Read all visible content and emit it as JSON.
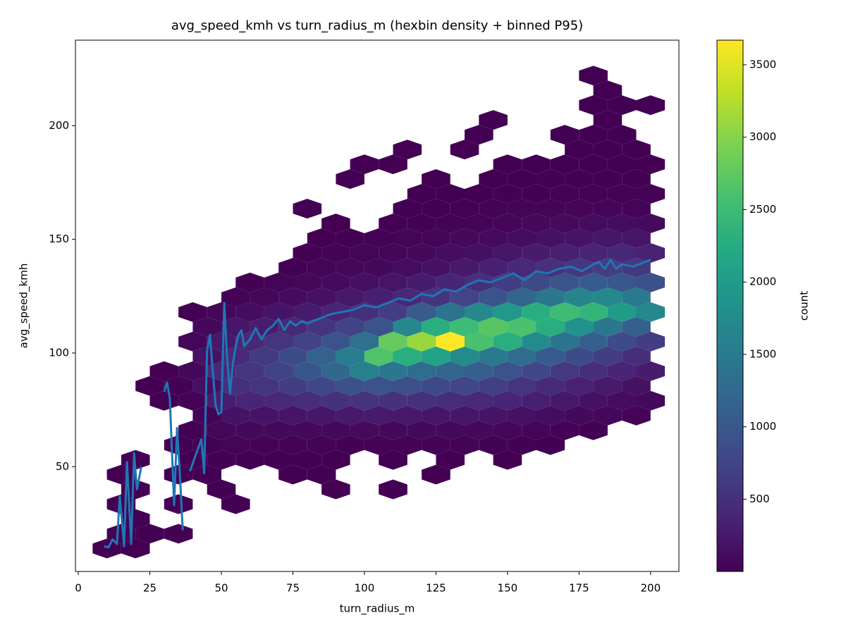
{
  "chart_data": {
    "type": "hexbin",
    "title": "avg_speed_kmh vs turn_radius_m (hexbin density + binned P95)",
    "x_label": "turn_radius_m",
    "y_label": "avg_speed_kmh",
    "xlim": [
      -1,
      209.9
    ],
    "ylim": [
      3.9,
      237.6
    ],
    "xticks": [
      0,
      25,
      50,
      75,
      100,
      125,
      150,
      175,
      200
    ],
    "yticks": [
      50,
      100,
      150,
      200
    ],
    "colormap": "viridis",
    "colorbar": {
      "label": "count",
      "lim": [
        1,
        3670
      ],
      "ticks": [
        500,
        1000,
        1500,
        2000,
        2500,
        3000,
        3500
      ]
    },
    "rows": [
      {
        "y": 14,
        "x": [
          10,
          20
        ],
        "counts": [
          3,
          2
        ]
      },
      {
        "y": 20.5,
        "x": [
          15,
          25,
          35
        ],
        "counts": [
          4,
          1,
          2
        ]
      },
      {
        "y": 27,
        "x": [
          20
        ],
        "counts": [
          2
        ]
      },
      {
        "y": 33.5,
        "x": [
          15,
          35,
          55
        ],
        "counts": [
          2,
          3,
          1
        ]
      },
      {
        "y": 40,
        "x": [
          20,
          50,
          90,
          110
        ],
        "counts": [
          2,
          3,
          1,
          1
        ]
      },
      {
        "y": 46.5,
        "x": [
          15,
          35,
          45,
          75,
          85,
          125
        ],
        "counts": [
          3,
          2,
          4,
          2,
          3,
          1
        ]
      },
      {
        "y": 53,
        "x": [
          20,
          40,
          50,
          60,
          70,
          80,
          90,
          110,
          130,
          150
        ],
        "counts": [
          3,
          5,
          8,
          6,
          4,
          2,
          6,
          4,
          3,
          2
        ]
      },
      {
        "y": 59.5,
        "x": [
          35,
          45,
          55,
          65,
          75,
          85,
          95,
          105,
          115,
          125,
          135,
          145,
          155,
          165
        ],
        "counts": [
          4,
          12,
          30,
          25,
          18,
          20,
          15,
          22,
          18,
          25,
          20,
          15,
          10,
          4
        ]
      },
      {
        "y": 66,
        "x": [
          40,
          50,
          60,
          70,
          80,
          90,
          100,
          110,
          120,
          130,
          140,
          150,
          160,
          170,
          180
        ],
        "counts": [
          8,
          60,
          90,
          80,
          75,
          85,
          95,
          90,
          85,
          80,
          70,
          60,
          40,
          20,
          10
        ]
      },
      {
        "y": 72.5,
        "x": [
          45,
          55,
          65,
          75,
          85,
          95,
          105,
          115,
          125,
          135,
          145,
          155,
          165,
          175,
          185,
          195
        ],
        "counts": [
          40,
          180,
          200,
          210,
          230,
          250,
          260,
          240,
          230,
          220,
          200,
          170,
          130,
          90,
          60,
          30
        ]
      },
      {
        "y": 79,
        "x": [
          30,
          40,
          50,
          60,
          70,
          80,
          90,
          100,
          110,
          120,
          130,
          140,
          150,
          160,
          170,
          180,
          190,
          200
        ],
        "counts": [
          3,
          20,
          300,
          380,
          420,
          480,
          520,
          540,
          520,
          500,
          470,
          430,
          380,
          320,
          240,
          170,
          120,
          80
        ]
      },
      {
        "y": 85.5,
        "x": [
          25,
          35,
          45,
          55,
          65,
          75,
          85,
          95,
          105,
          115,
          125,
          135,
          145,
          155,
          165,
          175,
          185,
          195
        ],
        "counts": [
          1,
          10,
          150,
          500,
          560,
          650,
          780,
          900,
          920,
          880,
          820,
          760,
          680,
          560,
          440,
          340,
          260,
          180
        ]
      },
      {
        "y": 92,
        "x": [
          30,
          40,
          50,
          60,
          70,
          80,
          90,
          100,
          110,
          120,
          130,
          140,
          150,
          160,
          170,
          180,
          190,
          200
        ],
        "counts": [
          6,
          90,
          420,
          560,
          720,
          980,
          1250,
          1600,
          1450,
          1300,
          1200,
          1100,
          950,
          780,
          600,
          480,
          380,
          280
        ]
      },
      {
        "y": 98.5,
        "x": [
          45,
          55,
          65,
          75,
          85,
          95,
          105,
          115,
          125,
          135,
          145,
          155,
          165,
          175,
          185,
          195
        ],
        "counts": [
          180,
          420,
          620,
          850,
          1150,
          1550,
          2650,
          2300,
          2100,
          1750,
          1500,
          1300,
          1050,
          850,
          650,
          480
        ]
      },
      {
        "y": 105,
        "x": [
          40,
          50,
          60,
          70,
          80,
          90,
          100,
          110,
          120,
          130,
          140,
          150,
          160,
          170,
          180,
          190,
          200
        ],
        "counts": [
          60,
          250,
          430,
          560,
          720,
          950,
          1350,
          2800,
          3100,
          3670,
          2600,
          2300,
          1750,
          1400,
          1100,
          850,
          650
        ]
      },
      {
        "y": 111.5,
        "x": [
          45,
          55,
          65,
          75,
          85,
          95,
          105,
          115,
          125,
          135,
          145,
          155,
          165,
          175,
          185,
          195
        ],
        "counts": [
          90,
          220,
          300,
          420,
          560,
          720,
          950,
          1700,
          2300,
          2500,
          2700,
          2600,
          2300,
          1850,
          1450,
          1100
        ]
      },
      {
        "y": 118,
        "x": [
          40,
          50,
          60,
          70,
          80,
          90,
          100,
          110,
          120,
          130,
          140,
          150,
          160,
          170,
          180,
          190,
          200
        ],
        "counts": [
          2,
          60,
          130,
          200,
          280,
          380,
          500,
          650,
          1050,
          1400,
          1700,
          1950,
          2300,
          2500,
          2400,
          2000,
          1700
        ]
      },
      {
        "y": 124.5,
        "x": [
          55,
          65,
          75,
          85,
          95,
          105,
          115,
          125,
          135,
          145,
          155,
          165,
          175,
          185,
          195
        ],
        "counts": [
          25,
          60,
          110,
          170,
          250,
          330,
          430,
          560,
          750,
          950,
          1200,
          1450,
          1650,
          1700,
          1500
        ]
      },
      {
        "y": 131,
        "x": [
          60,
          70,
          80,
          90,
          100,
          110,
          120,
          130,
          140,
          150,
          160,
          170,
          180,
          190,
          200
        ],
        "counts": [
          10,
          30,
          60,
          100,
          150,
          210,
          280,
          380,
          500,
          650,
          820,
          950,
          1050,
          1000,
          900
        ]
      },
      {
        "y": 137.5,
        "x": [
          75,
          85,
          95,
          105,
          115,
          125,
          135,
          145,
          155,
          165,
          175,
          185,
          195
        ],
        "counts": [
          15,
          35,
          60,
          90,
          130,
          180,
          250,
          330,
          420,
          520,
          600,
          650,
          600
        ]
      },
      {
        "y": 144,
        "x": [
          80,
          90,
          100,
          110,
          120,
          130,
          140,
          150,
          160,
          170,
          180,
          190,
          200
        ],
        "counts": [
          8,
          20,
          35,
          55,
          80,
          120,
          160,
          220,
          280,
          330,
          380,
          400,
          360
        ]
      },
      {
        "y": 150.5,
        "x": [
          85,
          95,
          105,
          115,
          125,
          135,
          145,
          155,
          165,
          175,
          185,
          195
        ],
        "counts": [
          6,
          12,
          20,
          30,
          45,
          70,
          100,
          130,
          170,
          200,
          220,
          210
        ]
      },
      {
        "y": 157,
        "x": [
          90,
          110,
          120,
          130,
          140,
          150,
          160,
          170,
          180,
          190,
          200
        ],
        "counts": [
          4,
          8,
          15,
          25,
          40,
          55,
          75,
          95,
          110,
          120,
          100
        ]
      },
      {
        "y": 163.5,
        "x": [
          80,
          115,
          125,
          135,
          145,
          155,
          165,
          175,
          185,
          195
        ],
        "counts": [
          1,
          3,
          6,
          12,
          20,
          30,
          40,
          50,
          55,
          45
        ]
      },
      {
        "y": 170,
        "x": [
          120,
          130,
          140,
          150,
          160,
          170,
          180,
          190,
          200
        ],
        "counts": [
          2,
          3,
          6,
          10,
          14,
          20,
          24,
          26,
          18
        ]
      },
      {
        "y": 176.5,
        "x": [
          95,
          125,
          145,
          155,
          165,
          175,
          185,
          195
        ],
        "counts": [
          1,
          2,
          3,
          5,
          8,
          10,
          12,
          8
        ]
      },
      {
        "y": 183,
        "x": [
          100,
          110,
          150,
          160,
          170,
          180,
          190,
          200
        ],
        "counts": [
          1,
          2,
          2,
          3,
          4,
          6,
          5,
          3
        ]
      },
      {
        "y": 189.5,
        "x": [
          115,
          135,
          175,
          185,
          195
        ],
        "counts": [
          1,
          1,
          2,
          3,
          2
        ]
      },
      {
        "y": 196,
        "x": [
          140,
          170,
          180,
          190
        ],
        "counts": [
          1,
          1,
          2,
          1
        ]
      },
      {
        "y": 202.5,
        "x": [
          145,
          185
        ],
        "counts": [
          1,
          1
        ]
      },
      {
        "y": 209,
        "x": [
          180,
          190,
          200
        ],
        "counts": [
          1,
          1,
          1
        ]
      },
      {
        "y": 215.5,
        "x": [
          185
        ],
        "counts": [
          1
        ]
      },
      {
        "y": 222,
        "x": [
          180
        ],
        "counts": [
          1
        ]
      }
    ],
    "line": {
      "color": "#1f77b4",
      "x": [
        9,
        10.5,
        12,
        13.5,
        14.5,
        16,
        17,
        18.5,
        19.5,
        20.5,
        22,
        26,
        30,
        31,
        32,
        33.5,
        34.5,
        35.5,
        36.5,
        38,
        39,
        41,
        43,
        44,
        45,
        46,
        47,
        48,
        49,
        50,
        51,
        52,
        53,
        54,
        55,
        56,
        57,
        58,
        60,
        62,
        64,
        66,
        68,
        70,
        72,
        74,
        76,
        78,
        80,
        84,
        88,
        92,
        96,
        100,
        104,
        108,
        112,
        116,
        120,
        124,
        128,
        132,
        136,
        140,
        144,
        148,
        152,
        156,
        160,
        164,
        168,
        172,
        176,
        180,
        182,
        184,
        186,
        188,
        190,
        194,
        198,
        200
      ],
      "y": [
        15,
        14.5,
        18,
        16,
        37,
        15,
        52,
        16,
        56,
        40,
        50,
        null,
        83,
        87,
        80,
        33,
        67,
        47,
        22,
        null,
        48,
        55,
        62,
        47,
        101,
        108,
        92,
        77,
        73,
        74,
        122,
        98,
        82,
        95,
        103,
        108,
        110,
        103,
        106,
        111,
        106,
        110,
        112,
        115,
        110,
        114,
        112,
        114,
        113,
        115,
        117,
        118,
        119,
        121,
        120,
        122,
        124,
        123,
        126,
        125,
        128,
        127,
        130,
        132,
        131,
        133,
        135,
        132,
        136,
        135,
        137,
        138,
        136,
        139,
        140,
        137,
        141,
        137,
        139,
        138,
        140,
        141
      ]
    }
  }
}
